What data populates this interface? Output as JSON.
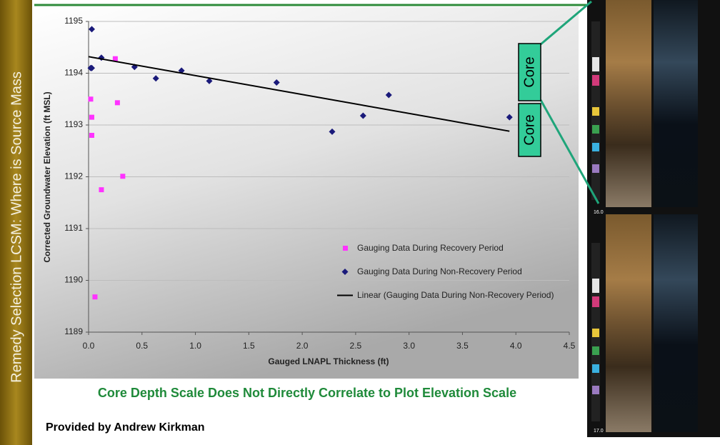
{
  "slide": {
    "sidebar_title": "Remedy Selection LCSM: Where is Source Mass",
    "caption": "Core Depth Scale Does Not Directly Correlate to Plot Elevation Scale",
    "credit": "Provided by Andrew Kirkman",
    "core_labels": [
      "Core",
      "Core"
    ],
    "depth_labels": [
      "16.0",
      "17.0"
    ]
  },
  "chart_data": {
    "type": "scatter",
    "x_label": "Gauged LNAPL Thickness (ft)",
    "y_label": "Corrected Groundwater Elevation (ft MSL)",
    "xlim": [
      0,
      4.5
    ],
    "xticks": [
      {
        "value": 0,
        "label": "0.0"
      },
      0.5,
      {
        "value": 1,
        "label": "1.0"
      },
      1.5,
      {
        "value": 2,
        "label": "2.0"
      },
      2.5,
      {
        "value": 3,
        "label": "3.0"
      },
      3.5,
      {
        "value": 4,
        "label": "4.0"
      },
      4.5
    ],
    "ylim": [
      1189,
      1195
    ],
    "yticks": [
      1189,
      1190,
      1191,
      1192,
      1193,
      1194,
      1195
    ],
    "grid": true,
    "series": [
      {
        "name": "Gauging Data During Recovery Period",
        "color": "#ff33ff",
        "marker": "square",
        "x": [
          0.02,
          0.03,
          0.03,
          0.25,
          0.27,
          0.32,
          0.12,
          0.06
        ],
        "values": [
          1193.5,
          1193.15,
          1192.8,
          1194.28,
          1193.43,
          1192.01,
          1191.75,
          1189.68
        ]
      },
      {
        "name": "Gauging Data During Non-Recovery Period",
        "color": "#1a1a7a",
        "marker": "diamond",
        "x": [
          0.03,
          0.02,
          0.03,
          0.12,
          0.43,
          0.63,
          0.87,
          1.13,
          1.76,
          2.28,
          2.57,
          2.81,
          3.94
        ],
        "values": [
          1194.85,
          1194.1,
          1194.1,
          1194.3,
          1194.12,
          1193.9,
          1194.05,
          1193.85,
          1193.82,
          1192.87,
          1193.18,
          1193.58,
          1193.15
        ]
      },
      {
        "name": "Linear (Gauging Data During Non-Recovery Period)",
        "color": "#000000",
        "marker": "line",
        "x": [
          0,
          3.94
        ],
        "values": [
          1194.32,
          1192.88
        ]
      }
    ]
  }
}
